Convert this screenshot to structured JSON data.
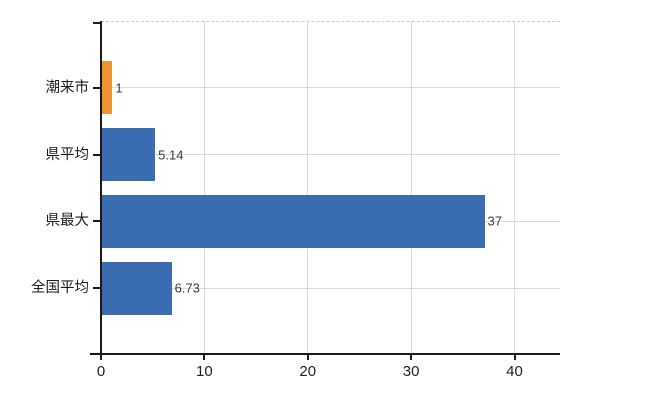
{
  "chart_data": {
    "type": "bar",
    "orientation": "horizontal",
    "title": "",
    "xlabel": "",
    "ylabel": "",
    "categories": [
      "潮来市",
      "県平均",
      "県最大",
      "全国平均"
    ],
    "values": [
      1,
      5.14,
      37,
      6.73
    ],
    "value_labels": [
      "1",
      "5.14",
      "37",
      "6.73"
    ],
    "bar_colors": [
      "#ee9331",
      "#3a6cb2",
      "#3a6cb2",
      "#3a6cb2"
    ],
    "x_ticks": [
      0,
      10,
      20,
      30,
      40
    ],
    "x_tick_labels": [
      "0",
      "10",
      "20",
      "30",
      "40"
    ],
    "xlim": [
      0,
      44.4
    ],
    "grid": true,
    "gridline_horizontal_color": "#d6dcd2",
    "gridline_vertical_color": "#dadada",
    "plot_top_border_color": "#c9ccd1",
    "axis_color": "#1a1a1a",
    "legend": null,
    "highlight_color": "#ee9331",
    "series_color": "#3a6cb2"
  }
}
